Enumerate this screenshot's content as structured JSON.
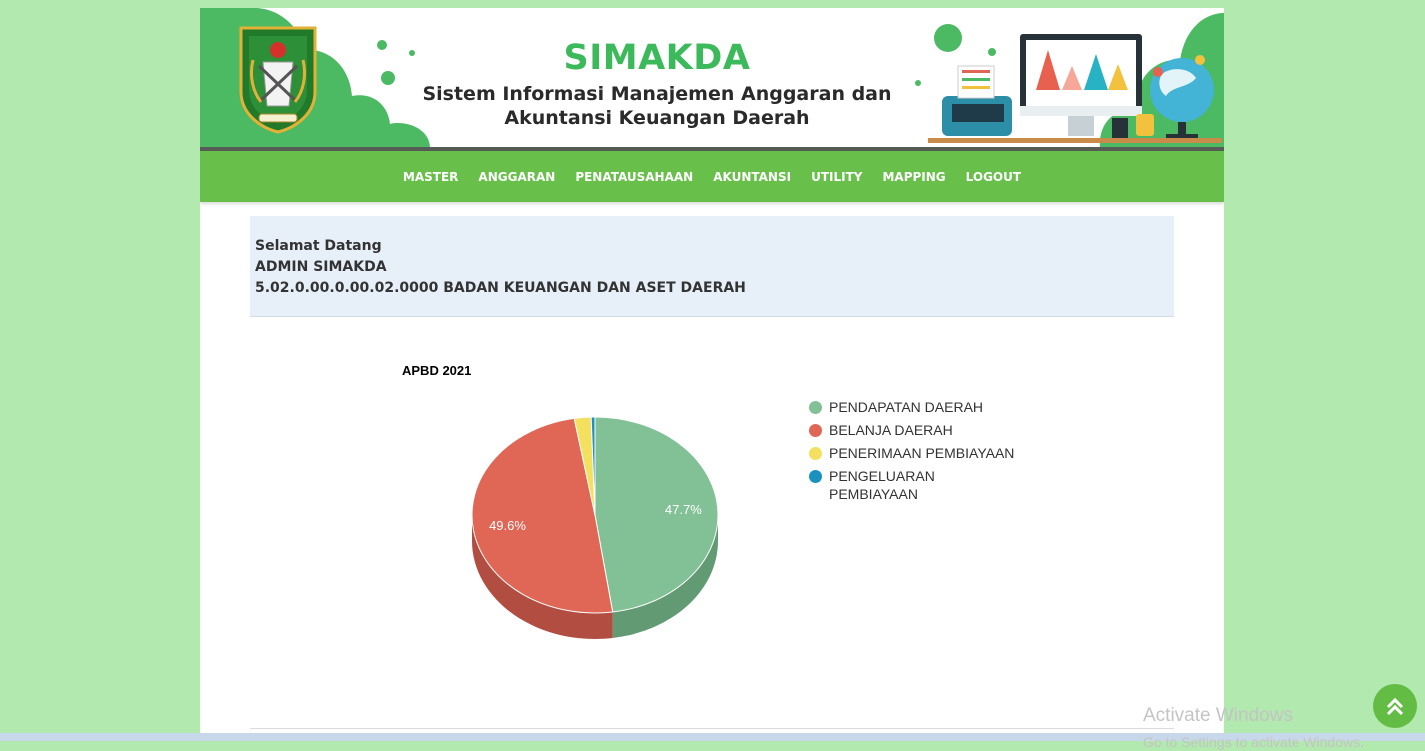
{
  "header": {
    "brand": "SIMAKDA",
    "tagline_line1": "Sistem Informasi Manajemen Anggaran dan",
    "tagline_line2": "Akuntansi Keuangan Daerah"
  },
  "nav": {
    "items": [
      {
        "label": "MASTER"
      },
      {
        "label": "ANGGARAN"
      },
      {
        "label": "PENATAUSAHAAN"
      },
      {
        "label": "AKUNTANSI"
      },
      {
        "label": "UTILITY"
      },
      {
        "label": "MAPPING"
      },
      {
        "label": "LOGOUT"
      }
    ]
  },
  "welcome": {
    "greeting": "Selamat Datang",
    "user": "ADMIN SIMAKDA",
    "unit": "5.02.0.00.0.00.02.0000 BADAN KEUANGAN DAN ASET DAERAH"
  },
  "chart_data": {
    "type": "pie",
    "title": "APBD 2021",
    "legend_position": "right",
    "slices": [
      {
        "name": "PENDAPATAN DAERAH",
        "percent": 47.7,
        "label": "47.7%",
        "color": "#82c096",
        "side": "#629a73"
      },
      {
        "name": "BELANJA DAERAH",
        "percent": 49.6,
        "label": "49.6%",
        "color": "#e06756",
        "side": "#b14d41"
      },
      {
        "name": "PENERIMAAN PEMBIAYAAN",
        "percent": 2.2,
        "label": "",
        "color": "#f2e05e",
        "side": "#c4b449"
      },
      {
        "name": "PENGELUARAN PEMBIAYAAN",
        "percent": 0.5,
        "label": "",
        "color": "#1b91bf",
        "side": "#15739a"
      }
    ]
  },
  "watermark": {
    "line1": "Activate Windows",
    "line2": "Go to Settings to activate Windows."
  },
  "icons": {
    "logo": "provincial-emblem",
    "scroll_top": "chevron-up-icon"
  }
}
